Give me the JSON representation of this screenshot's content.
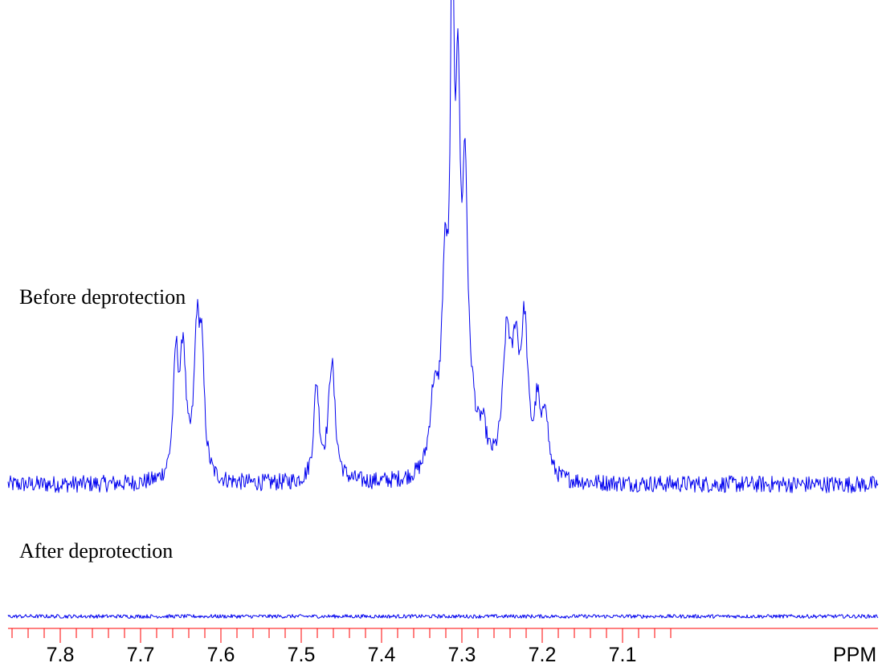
{
  "chart_data": {
    "type": "line",
    "x_axis": {
      "range": [
        7.9,
        7.0
      ],
      "reversed": true,
      "major_ticks": [
        7.8,
        7.7,
        7.6,
        7.5,
        7.4,
        7.3,
        7.2,
        7.1
      ],
      "major_tick_labels": [
        "7.8",
        "7.7",
        "7.6",
        "7.5",
        "7.4",
        "7.3",
        "7.2",
        "7.1"
      ],
      "minor_tick_step": 0.02,
      "unit_label": "PPM"
    },
    "grid": false,
    "series": [
      {
        "name": "Before deprotection",
        "relative_scale": 1.0,
        "noise_level": 0.018,
        "peaks": [
          {
            "ppm": 7.656,
            "height": 0.25,
            "width": 0.004
          },
          {
            "ppm": 7.647,
            "height": 0.26,
            "width": 0.004
          },
          {
            "ppm": 7.63,
            "height": 0.28,
            "width": 0.004
          },
          {
            "ppm": 7.624,
            "height": 0.24,
            "width": 0.004
          },
          {
            "ppm": 7.481,
            "height": 0.2,
            "width": 0.004
          },
          {
            "ppm": 7.462,
            "height": 0.25,
            "width": 0.005
          },
          {
            "ppm": 7.335,
            "height": 0.15,
            "width": 0.006
          },
          {
            "ppm": 7.321,
            "height": 0.39,
            "width": 0.005
          },
          {
            "ppm": 7.312,
            "height": 1.0,
            "width": 0.0025
          },
          {
            "ppm": 7.305,
            "height": 0.71,
            "width": 0.0035
          },
          {
            "ppm": 7.296,
            "height": 0.56,
            "width": 0.004
          },
          {
            "ppm": 7.287,
            "height": 0.08,
            "width": 0.006
          },
          {
            "ppm": 7.274,
            "height": 0.08,
            "width": 0.006
          },
          {
            "ppm": 7.244,
            "height": 0.28,
            "width": 0.006
          },
          {
            "ppm": 7.233,
            "height": 0.22,
            "width": 0.005
          },
          {
            "ppm": 7.222,
            "height": 0.3,
            "width": 0.005
          },
          {
            "ppm": 7.206,
            "height": 0.14,
            "width": 0.004
          },
          {
            "ppm": 7.196,
            "height": 0.14,
            "width": 0.004
          }
        ]
      },
      {
        "name": "After deprotection",
        "relative_scale": 1.0,
        "noise_level": 0.004,
        "peaks": []
      }
    ],
    "colors": {
      "trace": "#0000ee",
      "axis": "#ff0000",
      "text": "#000000"
    }
  }
}
